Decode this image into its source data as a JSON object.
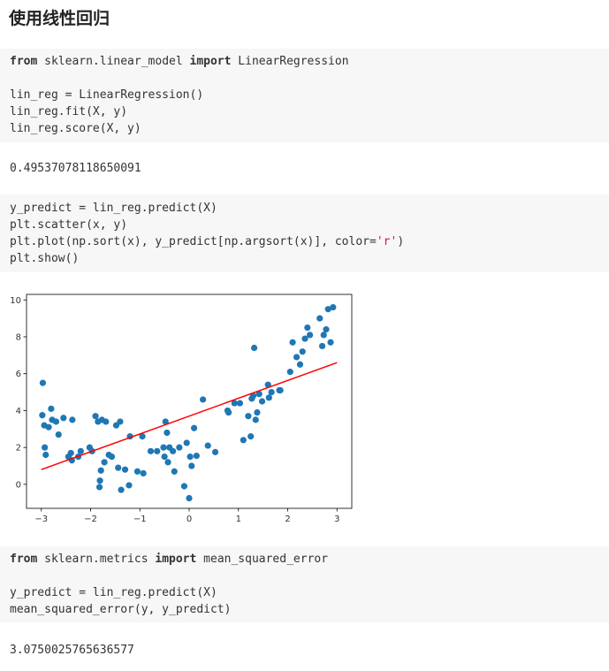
{
  "page": {
    "title": "使用线性回归"
  },
  "cells": {
    "c1": {
      "l1_kw1": "from",
      "l1_mid": " sklearn.linear_model ",
      "l1_kw2": "import",
      "l1_end": " LinearRegression",
      "l3": "lin_reg = LinearRegression()",
      "l4": "lin_reg.fit(X, y)",
      "l5": "lin_reg.score(X, y)"
    },
    "out1": "0.49537078118650091",
    "c2": {
      "l1": "y_predict = lin_reg.predict(X)",
      "l2": "plt.scatter(x, y)",
      "l3_pre": "plt.plot(np.sort(x), y_predict[np.argsort(x)], color=",
      "l3_str": "'r'",
      "l3_post": ")",
      "l4": "plt.show()"
    },
    "c3": {
      "l1_kw1": "from",
      "l1_mid": " sklearn.metrics ",
      "l1_kw2": "import",
      "l1_end": " mean_squared_error",
      "l3": "y_predict = lin_reg.predict(X)",
      "l4": "mean_squared_error(y, y_predict)"
    },
    "out2": "3.0750025765636577"
  },
  "colors": {
    "scatter": "#1f77b4",
    "line": "#ff0000"
  },
  "chart_data": {
    "type": "scatter",
    "xlim": [
      -3.3,
      3.3
    ],
    "ylim": [
      -1.3,
      10.3
    ],
    "xticks": [
      -3,
      -2,
      -1,
      0,
      1,
      2,
      3
    ],
    "xtick_labels": [
      "−3",
      "−2",
      "−1",
      "0",
      "1",
      "2",
      "3"
    ],
    "yticks": [
      0,
      2,
      4,
      6,
      8,
      10
    ],
    "ytick_labels": [
      "0",
      "2",
      "4",
      "6",
      "8",
      "10"
    ],
    "grid": false,
    "series": [
      {
        "kind": "scatter",
        "x": [
          -2.97,
          -2.98,
          -2.94,
          -2.93,
          -2.91,
          -2.85,
          -2.8,
          -2.78,
          -2.7,
          -2.65,
          -2.55,
          -2.45,
          -2.4,
          -2.38,
          -2.37,
          -2.25,
          -2.2,
          -2.02,
          -1.97,
          -1.9,
          -1.85,
          -1.82,
          -1.81,
          -1.79,
          -1.77,
          -1.72,
          -1.69,
          -1.63,
          -1.57,
          -1.48,
          -1.44,
          -1.4,
          -1.38,
          -1.3,
          -1.22,
          -1.2,
          -1.05,
          -0.95,
          -0.93,
          -0.78,
          -0.65,
          -0.52,
          -0.5,
          -0.48,
          -0.45,
          -0.43,
          -0.4,
          -0.33,
          -0.3,
          -0.2,
          -0.1,
          -0.05,
          0.0,
          0.02,
          0.05,
          0.1,
          0.15,
          0.28,
          0.38,
          0.53,
          0.78,
          0.8,
          0.92,
          1.03,
          1.1,
          1.2,
          1.25,
          1.27,
          1.3,
          1.32,
          1.35,
          1.38,
          1.42,
          1.48,
          1.6,
          1.62,
          1.67,
          1.83,
          1.85,
          2.05,
          2.1,
          2.18,
          2.25,
          2.3,
          2.35,
          2.4,
          2.45,
          2.65,
          2.7,
          2.73,
          2.78,
          2.82,
          2.87,
          2.92
        ],
        "y": [
          5.5,
          3.75,
          3.2,
          2.0,
          1.6,
          3.1,
          4.1,
          3.5,
          3.4,
          2.7,
          3.6,
          1.5,
          1.7,
          1.3,
          3.5,
          1.5,
          1.8,
          2.0,
          1.8,
          3.7,
          3.4,
          -0.15,
          0.2,
          0.75,
          3.5,
          1.2,
          3.4,
          1.6,
          1.5,
          3.2,
          0.9,
          3.4,
          -0.3,
          0.8,
          -0.05,
          2.6,
          0.7,
          2.6,
          0.6,
          1.8,
          1.8,
          2.0,
          1.5,
          3.4,
          2.8,
          1.2,
          2.0,
          1.8,
          0.7,
          2.0,
          -0.1,
          2.25,
          -0.75,
          1.5,
          1.0,
          3.05,
          1.55,
          4.6,
          2.1,
          1.75,
          4.0,
          3.9,
          4.4,
          4.4,
          2.4,
          3.7,
          2.6,
          4.65,
          4.8,
          7.4,
          3.5,
          3.9,
          4.9,
          4.5,
          5.4,
          4.7,
          5.0,
          5.1,
          5.1,
          6.1,
          7.7,
          6.9,
          6.5,
          7.2,
          7.9,
          8.5,
          8.1,
          9.0,
          7.5,
          8.1,
          8.4,
          9.5,
          7.7,
          9.6
        ]
      },
      {
        "kind": "line",
        "x": [
          -3.0,
          3.0
        ],
        "y": [
          0.8,
          6.6
        ]
      }
    ]
  }
}
